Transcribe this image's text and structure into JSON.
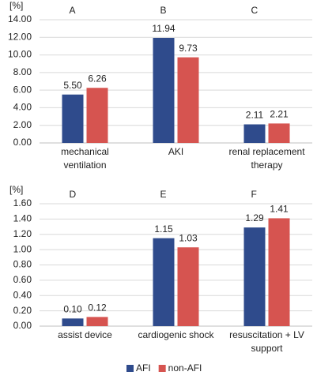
{
  "chart_data": [
    {
      "type": "bar",
      "y_label": "[%]",
      "panel_labels": [
        "A",
        "B",
        "C"
      ],
      "categories": [
        "mechanical ventilation",
        "AKI",
        "renal replacement therapy"
      ],
      "series": [
        {
          "name": "AFI",
          "color": "#2f4b8c",
          "values": [
            5.5,
            11.94,
            2.11
          ],
          "value_labels": [
            "5.50",
            "11.94",
            "2.11"
          ]
        },
        {
          "name": "non-AFI",
          "color": "#d65450",
          "values": [
            6.26,
            9.73,
            2.21
          ],
          "value_labels": [
            "6.26",
            "9.73",
            "2.21"
          ]
        }
      ],
      "ylim": [
        0,
        14
      ],
      "yticks": [
        {
          "value": 0,
          "label": "0.00"
        },
        {
          "value": 2,
          "label": "2.00"
        },
        {
          "value": 4,
          "label": "4.00"
        },
        {
          "value": 6,
          "label": "6.00"
        },
        {
          "value": 8,
          "label": "8.00"
        },
        {
          "value": 10,
          "label": "10.00"
        },
        {
          "value": 12,
          "label": "12.00"
        },
        {
          "value": 14,
          "label": "14.00"
        }
      ]
    },
    {
      "type": "bar",
      "y_label": "[%]",
      "panel_labels": [
        "D",
        "E",
        "F"
      ],
      "categories": [
        "assist device",
        "cardiogenic shock",
        "resuscitation + LV support"
      ],
      "series": [
        {
          "name": "AFI",
          "color": "#2f4b8c",
          "values": [
            0.1,
            1.15,
            1.29
          ],
          "value_labels": [
            "0.10",
            "1.15",
            "1.29"
          ]
        },
        {
          "name": "non-AFI",
          "color": "#d65450",
          "values": [
            0.12,
            1.03,
            1.41
          ],
          "value_labels": [
            "0.12",
            "1.03",
            "1.41"
          ]
        }
      ],
      "ylim": [
        0,
        1.6
      ],
      "yticks": [
        {
          "value": 0,
          "label": "0.00"
        },
        {
          "value": 0.2,
          "label": "0.20"
        },
        {
          "value": 0.4,
          "label": "0.40"
        },
        {
          "value": 0.6,
          "label": "0.60"
        },
        {
          "value": 0.8,
          "label": "0.80"
        },
        {
          "value": 1,
          "label": "1.00"
        },
        {
          "value": 1.2,
          "label": "1.20"
        },
        {
          "value": 1.4,
          "label": "1.40"
        },
        {
          "value": 1.6,
          "label": "1.60"
        }
      ]
    }
  ]
}
